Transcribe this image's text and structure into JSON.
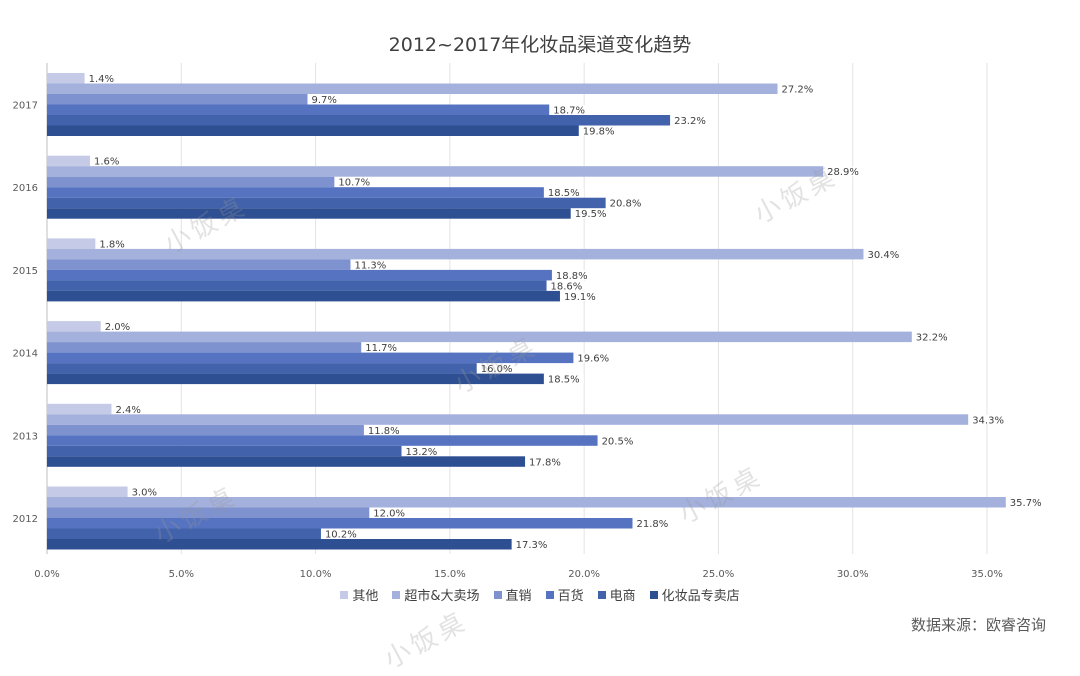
{
  "title": "2012~2017年化妆品渠道变化趋势",
  "source": "数据来源：欧睿咨询",
  "watermark": "小饭桌",
  "chart_data": {
    "type": "bar",
    "orientation": "horizontal",
    "title": "2012~2017年化妆品渠道变化趋势",
    "categories": [
      "2017",
      "2016",
      "2015",
      "2014",
      "2013",
      "2012"
    ],
    "series": [
      {
        "name": "其他",
        "color": "#c5cae6",
        "values": [
          1.4,
          1.6,
          1.8,
          2.0,
          2.4,
          3.0
        ]
      },
      {
        "name": "超市&大卖场",
        "color": "#a4b1dd",
        "values": [
          27.2,
          28.9,
          30.4,
          32.2,
          34.3,
          35.7
        ]
      },
      {
        "name": "直销",
        "color": "#7f92d0",
        "values": [
          9.7,
          10.7,
          11.3,
          11.7,
          11.8,
          12.0
        ]
      },
      {
        "name": "百货",
        "color": "#5573c0",
        "values": [
          18.7,
          18.5,
          18.8,
          19.6,
          20.5,
          21.8
        ]
      },
      {
        "name": "电商",
        "color": "#4263ab",
        "values": [
          23.2,
          20.8,
          18.6,
          16.0,
          13.2,
          10.2
        ]
      },
      {
        "name": "化妆品专卖店",
        "color": "#2f4f93",
        "values": [
          19.8,
          19.5,
          19.1,
          18.5,
          17.8,
          17.3
        ]
      }
    ],
    "xlim": [
      0,
      35
    ],
    "xticks": [
      "0.0%",
      "5.0%",
      "10.0%",
      "15.0%",
      "20.0%",
      "25.0%",
      "30.0%",
      "35.0%"
    ],
    "value_suffix": "%",
    "grid": true,
    "legend": "bottom"
  }
}
